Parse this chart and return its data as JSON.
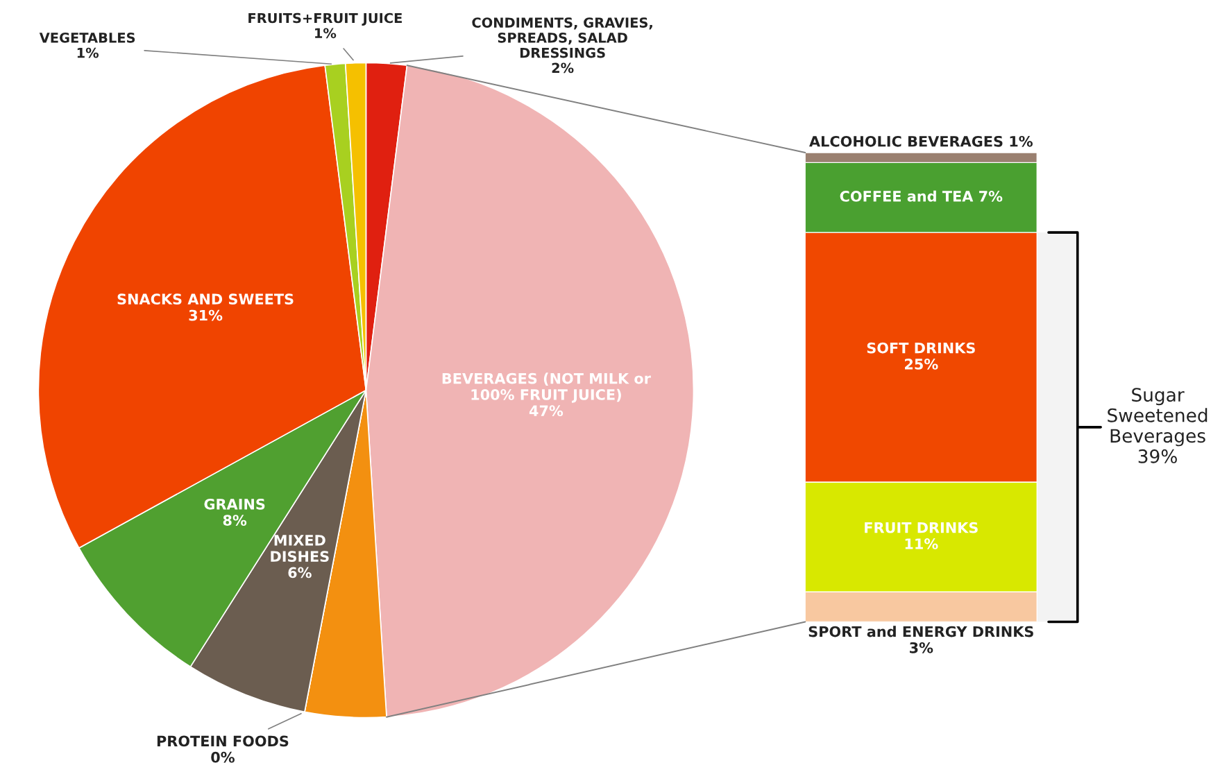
{
  "chart_data": [
    {
      "type": "pie",
      "categories": [
        "CONDIMENTS, GRAVIES,\nSPREADS, SALAD\nDRESSINGS",
        "BEVERAGES (NOT MILK or\n100% FRUIT JUICE)",
        null,
        "PROTEIN FOODS",
        "MIXED\nDISHES",
        "GRAINS",
        "SNACKS AND SWEETS",
        "VEGETABLES",
        "FRUITS+FRUIT JUICE"
      ],
      "values": [
        2,
        47,
        4,
        0,
        6,
        8,
        31,
        1,
        1
      ],
      "value_labels": [
        "2%",
        "47%",
        null,
        "0%",
        "6%",
        "8%",
        "31%",
        "1%",
        "1%"
      ],
      "colors": [
        "#e02010",
        "#f0b4b4",
        "#f39010",
        "#a00000",
        "#6b5d50",
        "#50a030",
        "#f04400",
        "#a8d020",
        "#f5c000"
      ]
    },
    {
      "type": "bar",
      "stacked": true,
      "categories": [
        null
      ],
      "series": [
        {
          "name": "SPORT and ENERGY DRINKS",
          "color": "#f8c8a0",
          "values": [
            3
          ],
          "value_labels": [
            "3%"
          ]
        },
        {
          "name": "FRUIT DRINKS",
          "color": "#d8e800",
          "values": [
            11
          ],
          "value_labels": [
            "11%"
          ]
        },
        {
          "name": "SOFT DRINKS",
          "color": "#f04800",
          "values": [
            25
          ],
          "value_labels": [
            "25%"
          ]
        },
        {
          "name": "COFFEE and TEA",
          "color": "#4aa030",
          "values": [
            7
          ],
          "value_labels": [
            "7%"
          ]
        },
        {
          "name": "ALCOHOLIC BEVERAGES",
          "color": "#9a8070",
          "values": [
            1
          ],
          "value_labels": [
            "1%"
          ]
        }
      ],
      "bands": [
        {
          "axis": "y",
          "from": 0,
          "to": 39,
          "label": "Sugar\nSweetened\nBeverages\n39%"
        }
      ]
    }
  ]
}
